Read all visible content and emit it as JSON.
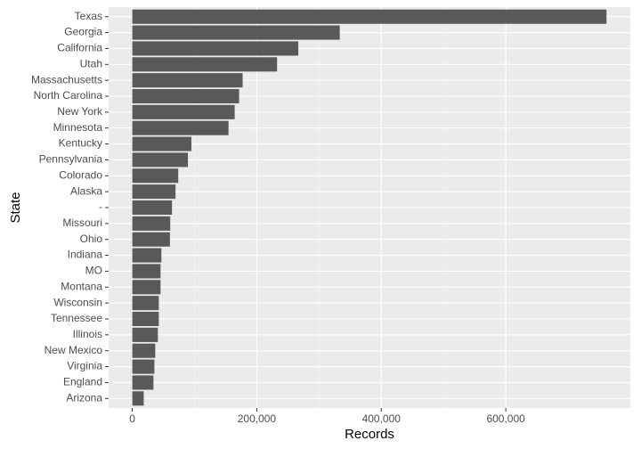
{
  "chart_data": {
    "type": "barh",
    "x_label": "Records",
    "y_label": "State",
    "categories": [
      "Texas",
      "Georgia",
      "California",
      "Utah",
      "Massachusetts",
      "North Carolina",
      "New York",
      "Minnesota",
      "Kentucky",
      "Pennsylvania",
      "Colorado",
      "Alaska",
      "-",
      "Missouri",
      "Ohio",
      "Indiana",
      "MO",
      "Montana",
      "Wisconsin",
      "Tennessee",
      "Illinois",
      "New Mexico",
      "Virginia",
      "England",
      "Arizona"
    ],
    "values": [
      761700,
      333300,
      266700,
      232600,
      177300,
      171600,
      164500,
      154600,
      95000,
      89400,
      73800,
      69500,
      63800,
      61000,
      60500,
      46800,
      45400,
      45400,
      42600,
      42600,
      41100,
      36900,
      35500,
      34000,
      18400
    ],
    "color": "#595959",
    "xlim": [
      -38000,
      800000
    ],
    "xticks": [
      0,
      {
        "value": 200000,
        "label": "200,000"
      },
      {
        "value": 400000,
        "label": "400,000"
      },
      {
        "value": 600000,
        "label": "600,000"
      }
    ],
    "grid": true
  }
}
